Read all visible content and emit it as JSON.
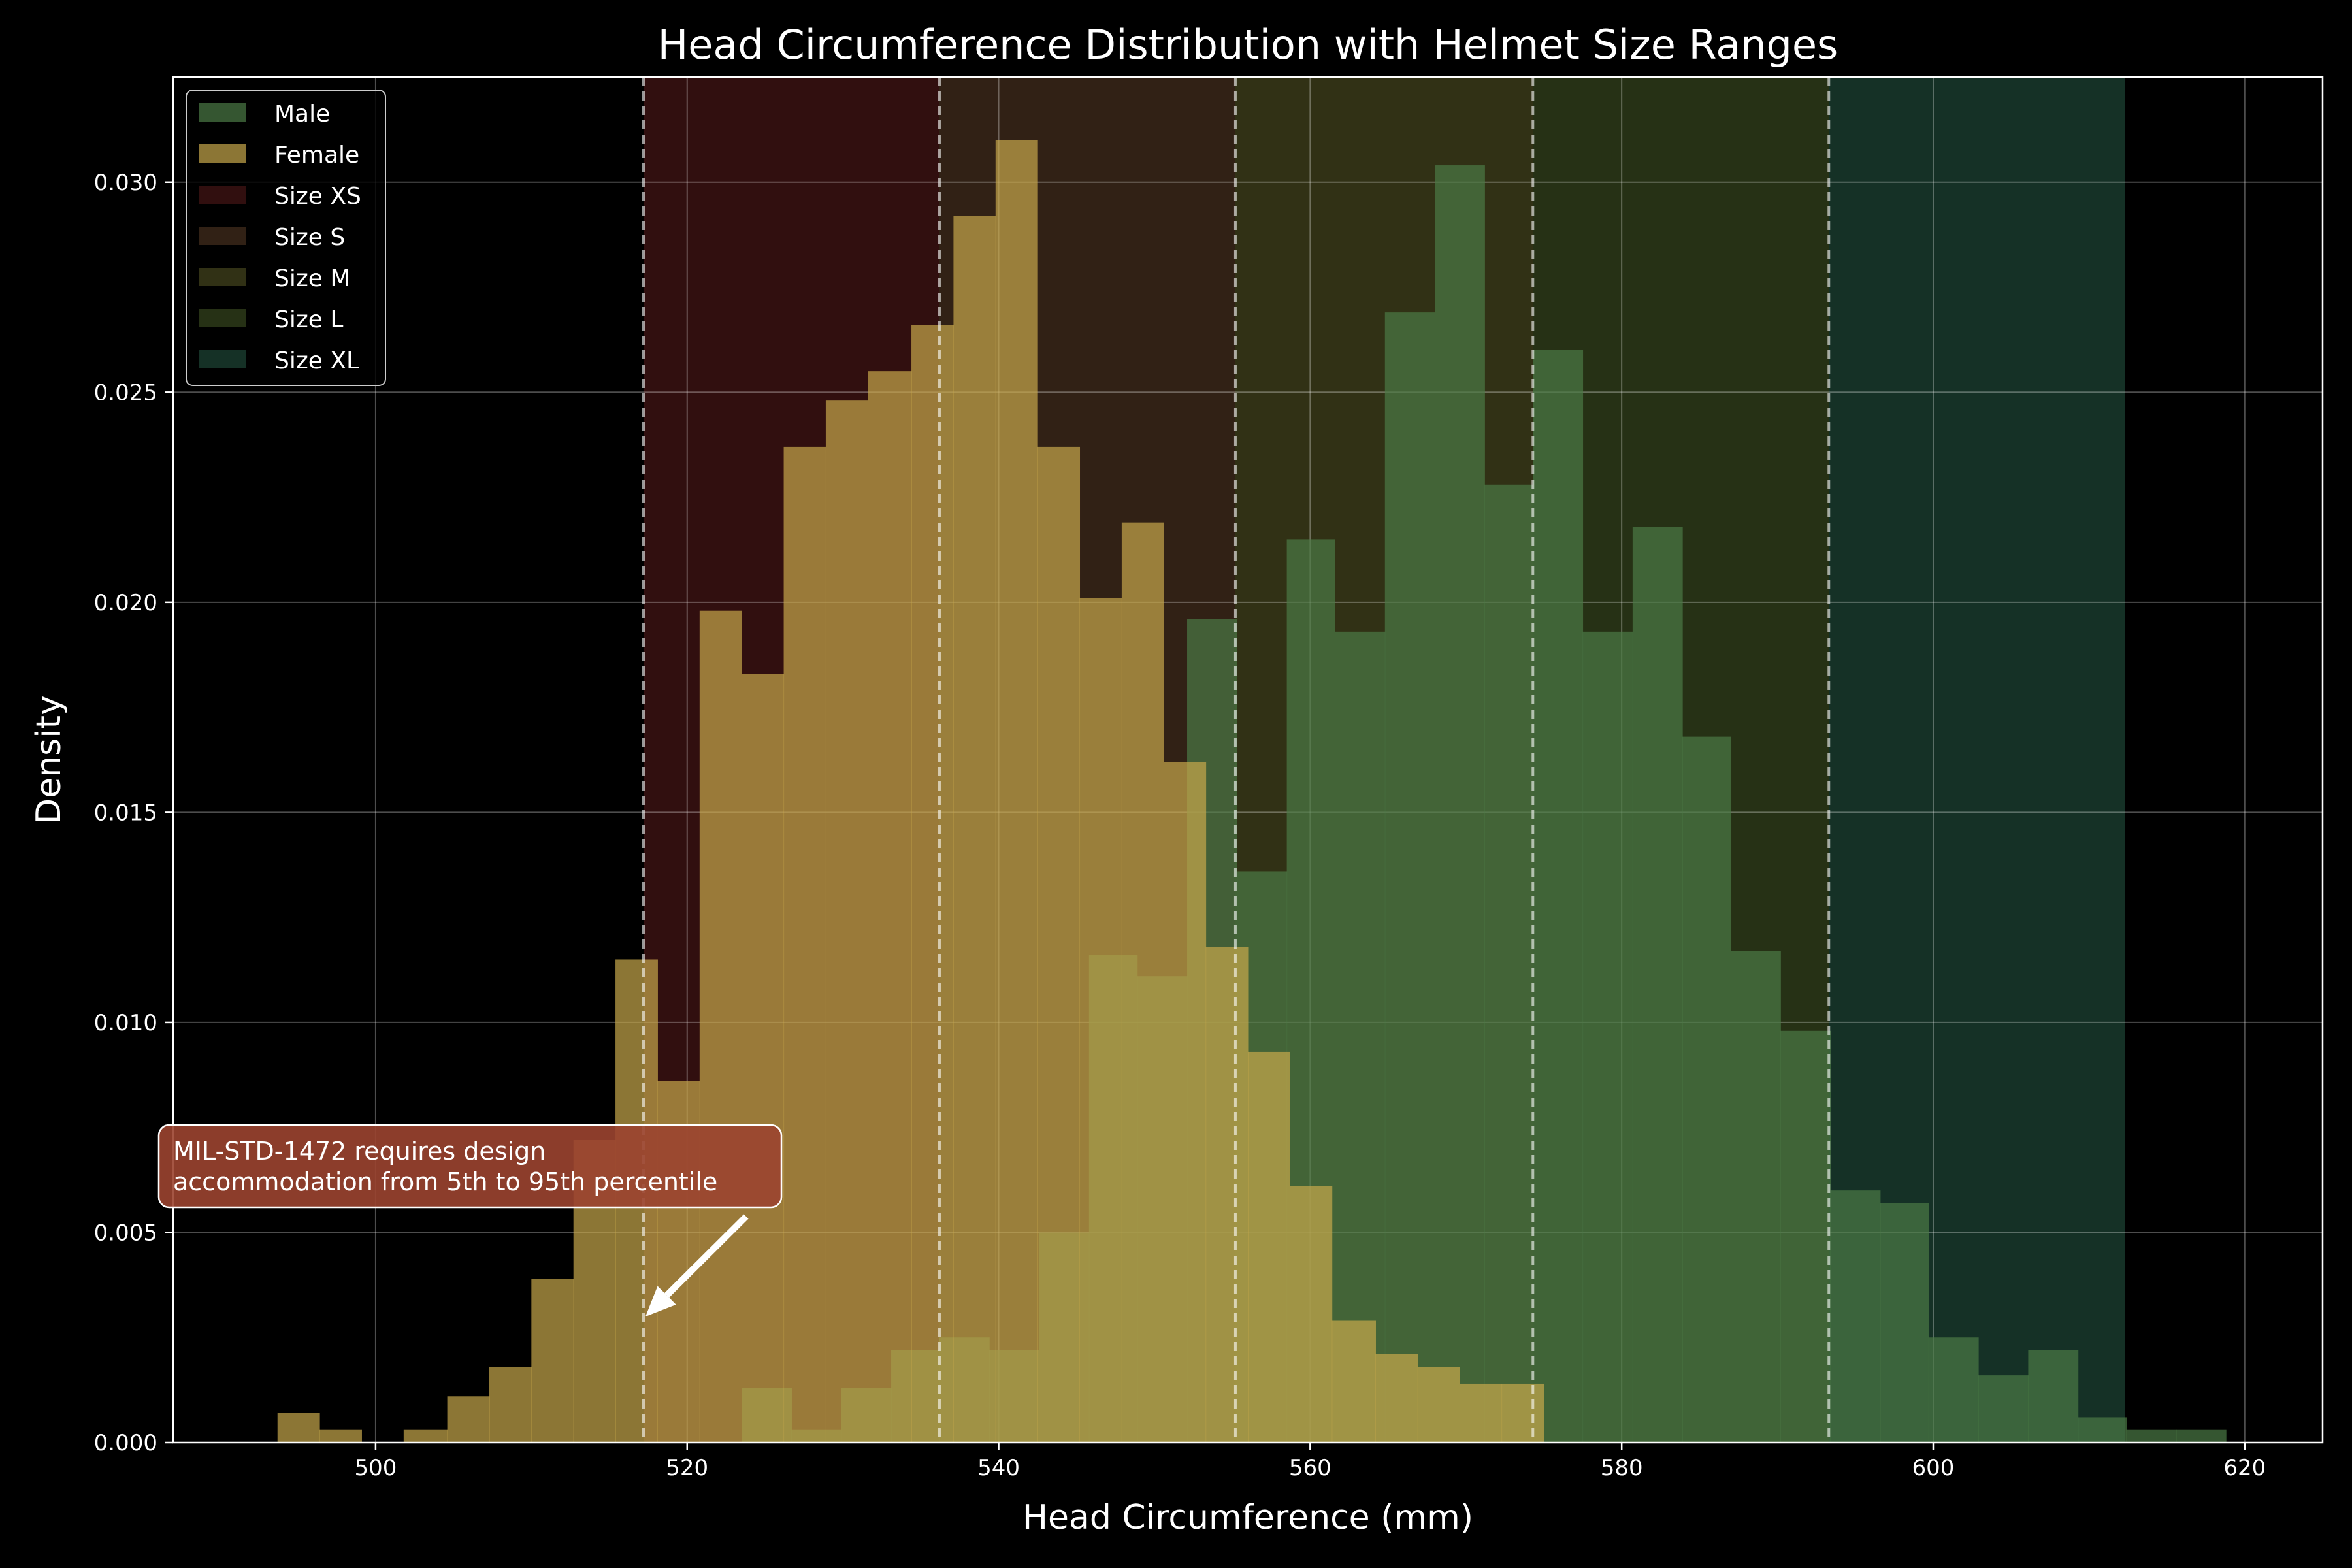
{
  "chart_data": {
    "type": "histogram",
    "title": "Head Circumference Distribution with Helmet Size Ranges",
    "xlabel": "Head Circumference (mm)",
    "ylabel": "Density",
    "xlim": [
      487,
      625
    ],
    "ylim": [
      0,
      0.0325
    ],
    "xticks": [
      500,
      520,
      540,
      560,
      580,
      600,
      620
    ],
    "yticks": [
      0.0,
      0.005,
      0.01,
      0.015,
      0.02,
      0.025,
      0.03
    ],
    "ytick_labels": [
      "0.000",
      "0.005",
      "0.010",
      "0.015",
      "0.020",
      "0.025",
      "0.030"
    ],
    "grid": true,
    "legend_placement": "top-left",
    "size_ranges": [
      {
        "name": "Size XS",
        "min": 517.2,
        "max": 536.2,
        "color": "#8b2b2b"
      },
      {
        "name": "Size S",
        "min": 536.2,
        "max": 555.2,
        "color": "#8b5e3c"
      },
      {
        "name": "Size M",
        "min": 555.2,
        "max": 574.3,
        "color": "#8b8b3c"
      },
      {
        "name": "Size L",
        "min": 574.3,
        "max": 593.3,
        "color": "#6e8b3c"
      },
      {
        "name": "Size XL",
        "min": 593.3,
        "max": 612.3,
        "color": "#3c8b6e"
      }
    ],
    "series": [
      {
        "name": "Male",
        "color": "#4c7a46",
        "bin_edges": [
          514.0,
          517.2,
          520.4,
          523.5,
          526.7,
          529.9,
          533.1,
          536.2,
          539.4,
          542.6,
          545.8,
          548.9,
          552.1,
          555.3,
          558.5,
          561.6,
          564.8,
          568.0,
          571.2,
          574.3,
          577.5,
          580.7,
          583.9,
          587.0,
          590.2,
          593.4,
          596.6,
          599.7,
          602.9,
          606.1,
          609.3,
          612.4,
          615.6,
          618.8
        ],
        "values": [
          0.0,
          0.0,
          0.0,
          0.0013,
          0.0003,
          0.0013,
          0.0022,
          0.0025,
          0.0022,
          0.005,
          0.0116,
          0.0111,
          0.0196,
          0.0136,
          0.0215,
          0.0193,
          0.0269,
          0.0304,
          0.0228,
          0.026,
          0.0193,
          0.0218,
          0.0168,
          0.0117,
          0.0098,
          0.006,
          0.0057,
          0.0025,
          0.0016,
          0.0022,
          0.0006,
          0.0003,
          0.0003
        ]
      },
      {
        "name": "Female",
        "color": "#c8a84b",
        "bin_edges": [
          493.7,
          496.4,
          499.1,
          501.8,
          504.6,
          507.3,
          510.0,
          512.7,
          515.4,
          518.1,
          520.8,
          523.5,
          526.2,
          528.9,
          531.6,
          534.4,
          537.1,
          539.8,
          542.5,
          545.2,
          547.9,
          550.6,
          553.3,
          556.0,
          558.7,
          561.4,
          564.2,
          566.9,
          569.6,
          572.3,
          575.0,
          577.7
        ],
        "values": [
          0.0007,
          0.0003,
          0.0,
          0.0003,
          0.0011,
          0.0018,
          0.0039,
          0.0072,
          0.0115,
          0.0086,
          0.0198,
          0.0183,
          0.0237,
          0.0248,
          0.0255,
          0.0266,
          0.0292,
          0.031,
          0.0237,
          0.0201,
          0.0219,
          0.0162,
          0.0118,
          0.0093,
          0.0061,
          0.0029,
          0.0021,
          0.0018,
          0.0014,
          0.0014,
          0.0
        ]
      }
    ],
    "annotation": {
      "text_lines": [
        "MIL-STD-1472 requires design",
        "accommodation from 5th to 95th percentile"
      ],
      "arrow_target": {
        "x": 517.2,
        "y": 0.003
      }
    }
  }
}
